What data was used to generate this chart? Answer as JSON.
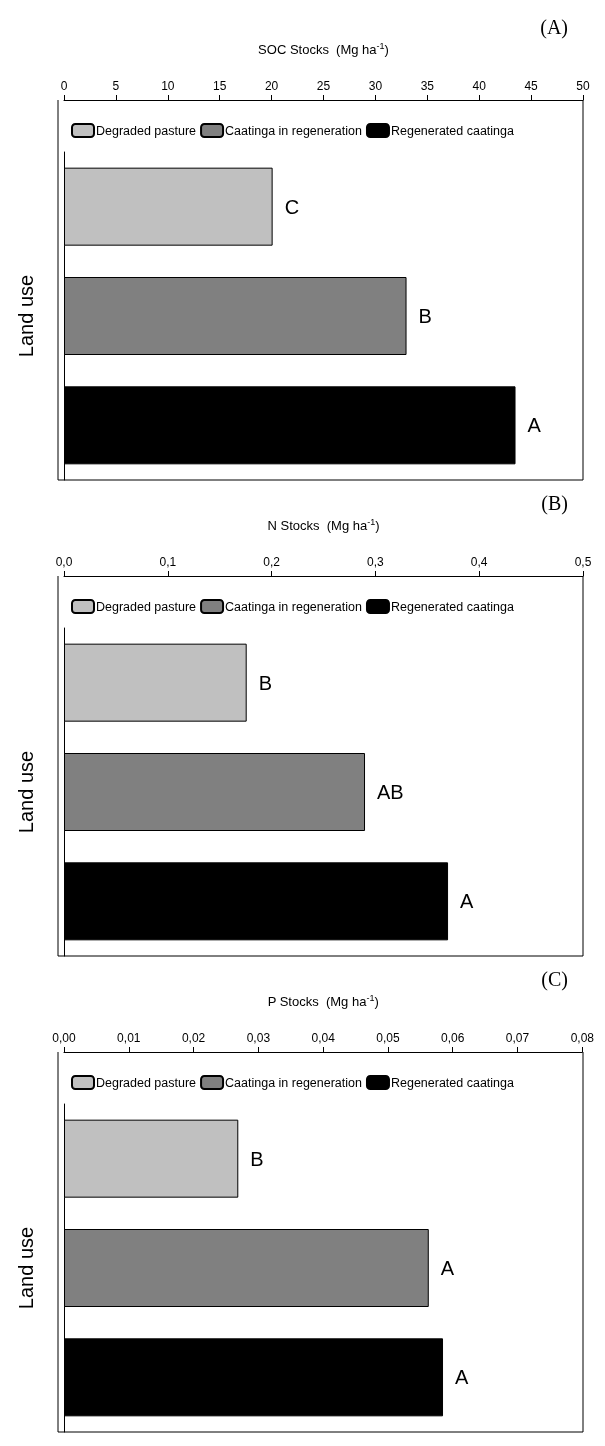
{
  "chart_data": [
    {
      "type": "bar",
      "orientation": "horizontal",
      "title": "(A)",
      "xlabel": "SOC Stocks  (Mg ha$^{-1}$)",
      "ylabel": "Land use",
      "categories": [
        null,
        null,
        null
      ],
      "legend": "top",
      "grid": false,
      "series": [
        {
          "name": "Degraded pasture",
          "color": "#c0c0c0",
          "values": [
            20.1,
            null,
            null
          ],
          "value_labels": [
            "C",
            null,
            null
          ]
        },
        {
          "name": "Caatinga in regeneration",
          "color": "#808080",
          "values": [
            null,
            33.0,
            null
          ],
          "value_labels": [
            null,
            "B",
            null
          ]
        },
        {
          "name": "Regenerated caatinga",
          "color": "#000000",
          "values": [
            null,
            null,
            43.5
          ],
          "value_labels": [
            null,
            null,
            "A"
          ]
        }
      ],
      "xlim": [
        0,
        50
      ],
      "xticks": [
        0,
        5,
        10,
        15,
        20,
        25,
        30,
        35,
        40,
        45,
        50
      ]
    },
    {
      "type": "bar",
      "orientation": "horizontal",
      "title": "(B)",
      "xlabel": "N Stocks  (Mg ha$^{-1}$)",
      "ylabel": "Land use",
      "categories": [
        null,
        null,
        null
      ],
      "legend": "top",
      "grid": false,
      "series": [
        {
          "name": "Degraded pasture",
          "color": "#c0c0c0",
          "values": [
            0.176,
            null,
            null
          ],
          "value_labels": [
            "B",
            null,
            null
          ]
        },
        {
          "name": "Caatinga in regeneration",
          "color": "#808080",
          "values": [
            null,
            0.29,
            null
          ],
          "value_labels": [
            null,
            "AB",
            null
          ]
        },
        {
          "name": "Regenerated caatinga",
          "color": "#000000",
          "values": [
            null,
            null,
            0.37
          ],
          "value_labels": [
            null,
            null,
            "A"
          ]
        }
      ],
      "xlim": [
        0,
        0.5
      ],
      "xticks": [
        {
          "value": 0,
          "label": "0,0"
        },
        {
          "value": 0.1,
          "label": "0,1"
        },
        {
          "value": 0.2,
          "label": "0,2"
        },
        {
          "value": 0.3,
          "label": "0,3"
        },
        {
          "value": 0.4,
          "label": "0,4"
        },
        {
          "value": 0.5,
          "label": "0,5"
        }
      ]
    },
    {
      "type": "bar",
      "orientation": "horizontal",
      "title": "(C)",
      "xlabel": "P Stocks  (Mg ha$^{-1}$)",
      "ylabel": "Land use",
      "categories": [
        null,
        null,
        null
      ],
      "legend": "top",
      "grid": false,
      "series": [
        {
          "name": "Degraded pasture",
          "color": "#c0c0c0",
          "values": [
            0.0269,
            null,
            null
          ],
          "value_labels": [
            "B",
            null,
            null
          ]
        },
        {
          "name": "Caatinga in regeneration",
          "color": "#808080",
          "values": [
            null,
            0.0563,
            null
          ],
          "value_labels": [
            null,
            "A",
            null
          ]
        },
        {
          "name": "Regenerated caatinga",
          "color": "#000000",
          "values": [
            null,
            null,
            0.0585
          ],
          "value_labels": [
            null,
            null,
            "A"
          ]
        }
      ],
      "xlim": [
        0,
        0.08
      ],
      "xticks": [
        {
          "value": 0,
          "label": "0,00"
        },
        {
          "value": 0.01,
          "label": "0,01"
        },
        {
          "value": 0.02,
          "label": "0,02"
        },
        {
          "value": 0.03,
          "label": "0,03"
        },
        {
          "value": 0.04,
          "label": "0,04"
        },
        {
          "value": 0.05,
          "label": "0,05"
        },
        {
          "value": 0.06,
          "label": "0,06"
        },
        {
          "value": 0.07,
          "label": "0,07"
        },
        {
          "value": 0.08,
          "label": "0,08"
        }
      ]
    }
  ]
}
